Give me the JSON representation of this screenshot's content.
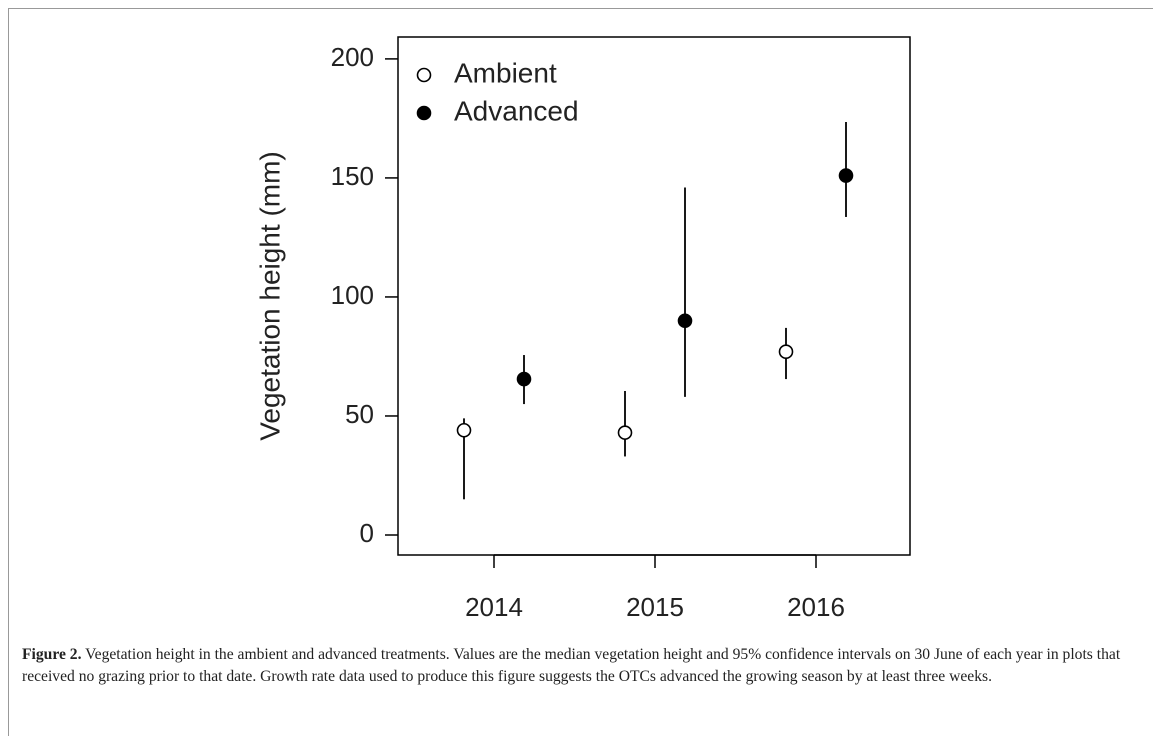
{
  "chart_data": {
    "type": "scatter",
    "y_label": "Vegetation height (mm)",
    "categories": [
      "2014",
      "2015",
      "2016"
    ],
    "series": [
      {
        "name": "Ambient",
        "filled": false,
        "color": "#000000",
        "values": [
          44,
          43,
          77
        ],
        "lower": [
          15,
          33,
          65.5
        ],
        "upper": [
          49,
          60.5,
          87
        ]
      },
      {
        "name": "Advanced",
        "filled": true,
        "color": "#000000",
        "values": [
          65.5,
          90,
          151
        ],
        "lower": [
          55,
          58,
          133.6
        ],
        "upper": [
          75.6,
          146,
          173.5
        ]
      }
    ],
    "ylim": [
      -8.4,
      209.2
    ],
    "yticks": [
      0,
      50,
      100,
      150,
      200
    ],
    "legend": "top-left"
  },
  "caption": {
    "label": "Figure 2.",
    "text": "Vegetation height in the ambient and advanced treatments. Values are the median vegetation height and 95% confidence intervals on 30 June of each year in plots that received no grazing prior to that date. Growth rate data used to produce this figure suggests the OTCs advanced the growing season by at least three weeks."
  }
}
